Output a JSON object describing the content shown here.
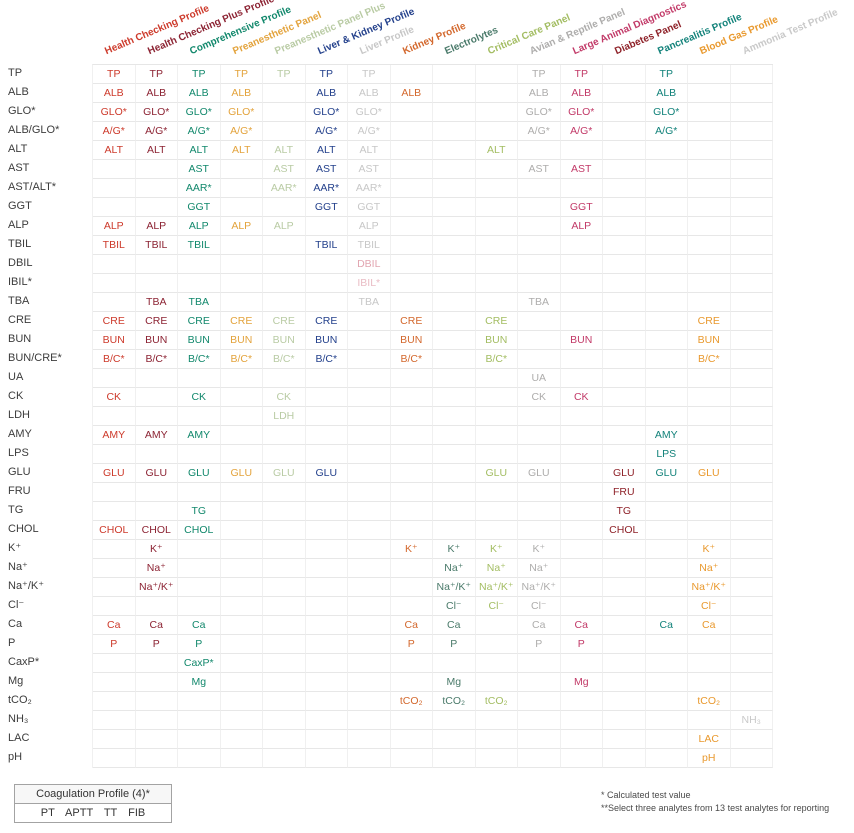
{
  "columns": [
    {
      "label": "Health Checking Profile",
      "color": "#cd3a2b"
    },
    {
      "label": "Health Checking Plus Profile",
      "color": "#8c2333"
    },
    {
      "label": "Comprehensive Profile",
      "color": "#12886c"
    },
    {
      "label": "Preanesthetic Panel",
      "color": "#e3a33c"
    },
    {
      "label": "Preanesthetic Panel Plus",
      "color": "#b9cba4"
    },
    {
      "label": "Liver & Kidney Profile",
      "color": "#24418c"
    },
    {
      "label": "Liver Profile",
      "color": "#c7c7c7"
    },
    {
      "label": "Kidney Profile",
      "color": "#d3682d"
    },
    {
      "label": "Electrolytes",
      "color": "#4a7a6a"
    },
    {
      "label": "Critical Care Panel",
      "color": "#a3bd62"
    },
    {
      "label": "Avian & Reptile Panel",
      "color": "#aeadac"
    },
    {
      "label": "Large Animal Diagnostics",
      "color": "#c23a68"
    },
    {
      "label": "Diabetes Panel",
      "color": "#8e2128"
    },
    {
      "label": "Pancrealitis Profile",
      "color": "#12827a"
    },
    {
      "label": "Blood Gas Profile",
      "color": "#e9992e"
    },
    {
      "label": "Ammonia Test Profile",
      "color": "#c9c9c9"
    }
  ],
  "rows": [
    {
      "label": "TP",
      "cell": "TP",
      "cols": [
        1,
        2,
        3,
        4,
        5,
        6,
        7,
        11,
        12,
        14
      ]
    },
    {
      "label": "ALB",
      "cell": "ALB",
      "cols": [
        1,
        2,
        3,
        4,
        6,
        7,
        8,
        11,
        12,
        14
      ]
    },
    {
      "label": "GLO*",
      "cell": "GLO*",
      "cols": [
        1,
        2,
        3,
        4,
        6,
        7,
        11,
        12,
        14
      ]
    },
    {
      "label": "ALB/GLO*",
      "cell": "A/G*",
      "cols": [
        1,
        2,
        3,
        4,
        6,
        7,
        11,
        12,
        14
      ]
    },
    {
      "label": "ALT",
      "cell": "ALT",
      "cols": [
        1,
        2,
        3,
        4,
        5,
        6,
        7,
        10
      ]
    },
    {
      "label": "AST",
      "cell": "AST",
      "cols": [
        3,
        5,
        6,
        7,
        11,
        12
      ]
    },
    {
      "label": "AST/ALT*",
      "cell": "AAR*",
      "cols": [
        3,
        5,
        6,
        7
      ]
    },
    {
      "label": "GGT",
      "cell": "GGT",
      "cols": [
        3,
        6,
        7,
        12
      ]
    },
    {
      "label": "ALP",
      "cell": "ALP",
      "cols": [
        1,
        2,
        3,
        4,
        5,
        7,
        12
      ]
    },
    {
      "label": "TBIL",
      "cell": "TBIL",
      "cols": [
        1,
        2,
        3,
        6,
        7
      ]
    },
    {
      "label": "DBIL",
      "cell": "DBIL",
      "cols": [
        7
      ],
      "overrides": {
        "7": "#e2a5b0"
      }
    },
    {
      "label": "IBIL*",
      "cell": "IBIL*",
      "cols": [
        7
      ],
      "overrides": {
        "7": "#e9bcc4"
      }
    },
    {
      "label": "TBA",
      "cell": "TBA",
      "cols": [
        2,
        3,
        7,
        11
      ]
    },
    {
      "label": "CRE",
      "cell": "CRE",
      "cols": [
        1,
        2,
        3,
        4,
        5,
        6,
        8,
        10,
        15
      ]
    },
    {
      "label": "BUN",
      "cell": "BUN",
      "cols": [
        1,
        2,
        3,
        4,
        5,
        6,
        8,
        10,
        12,
        15
      ]
    },
    {
      "label": "BUN/CRE*",
      "cell": "B/C*",
      "cols": [
        1,
        2,
        3,
        4,
        5,
        6,
        8,
        10,
        15
      ]
    },
    {
      "label": "UA",
      "cell": "UA",
      "cols": [
        11
      ]
    },
    {
      "label": "CK",
      "cell": "CK",
      "cols": [
        1,
        3,
        5,
        11,
        12
      ]
    },
    {
      "label": "LDH",
      "cell": "LDH",
      "cols": [
        5
      ]
    },
    {
      "label": "AMY",
      "cell": "AMY",
      "cols": [
        1,
        2,
        3,
        14
      ]
    },
    {
      "label": "LPS",
      "cell": "LPS",
      "cols": [
        14
      ]
    },
    {
      "label": "GLU",
      "cell": "GLU",
      "cols": [
        1,
        2,
        3,
        4,
        5,
        6,
        10,
        11,
        13,
        14,
        15
      ]
    },
    {
      "label": "FRU",
      "cell": "FRU",
      "cols": [
        13
      ]
    },
    {
      "label": "TG",
      "cell": "TG",
      "cols": [
        3,
        13
      ]
    },
    {
      "label": "CHOL",
      "cell": "CHOL",
      "cols": [
        1,
        2,
        3,
        13
      ]
    },
    {
      "label": "K⁺",
      "cell": "K⁺",
      "cols": [
        2,
        8,
        9,
        10,
        11,
        15
      ]
    },
    {
      "label": "Na⁺",
      "cell": "Na⁺",
      "cols": [
        2,
        9,
        10,
        11,
        15
      ]
    },
    {
      "label": "Na⁺/K⁺",
      "cell": "Na⁺/K⁺",
      "cols": [
        2,
        9,
        10,
        11,
        15
      ]
    },
    {
      "label": "Cl⁻",
      "cell": "Cl⁻",
      "cols": [
        9,
        10,
        11,
        15
      ]
    },
    {
      "label": "Ca",
      "cell": "Ca",
      "cols": [
        1,
        2,
        3,
        8,
        9,
        11,
        12,
        14,
        15
      ]
    },
    {
      "label": "P",
      "cell": "P",
      "cols": [
        1,
        2,
        3,
        8,
        9,
        11,
        12
      ]
    },
    {
      "label": "CaxP*",
      "cell": "CaxP*",
      "cols": [
        3
      ]
    },
    {
      "label": "Mg",
      "cell": "Mg",
      "cols": [
        3,
        9,
        12
      ]
    },
    {
      "label": "tCO₂",
      "cell": "tCO₂",
      "cols": [
        8,
        9,
        10,
        15
      ]
    },
    {
      "label": "NH₃",
      "cell": "NH₃",
      "cols": [
        16
      ]
    },
    {
      "label": "LAC",
      "cell": "LAC",
      "cols": [
        15
      ]
    },
    {
      "label": "pH",
      "cell": "pH",
      "cols": [
        15
      ]
    }
  ],
  "coagulation": {
    "title": "Coagulation Profile (4)*",
    "tests": "PT APTT TT FIB"
  },
  "footnotes": [
    "* Calculated test value",
    "**Select three analytes from 13 test analytes for reporting"
  ]
}
